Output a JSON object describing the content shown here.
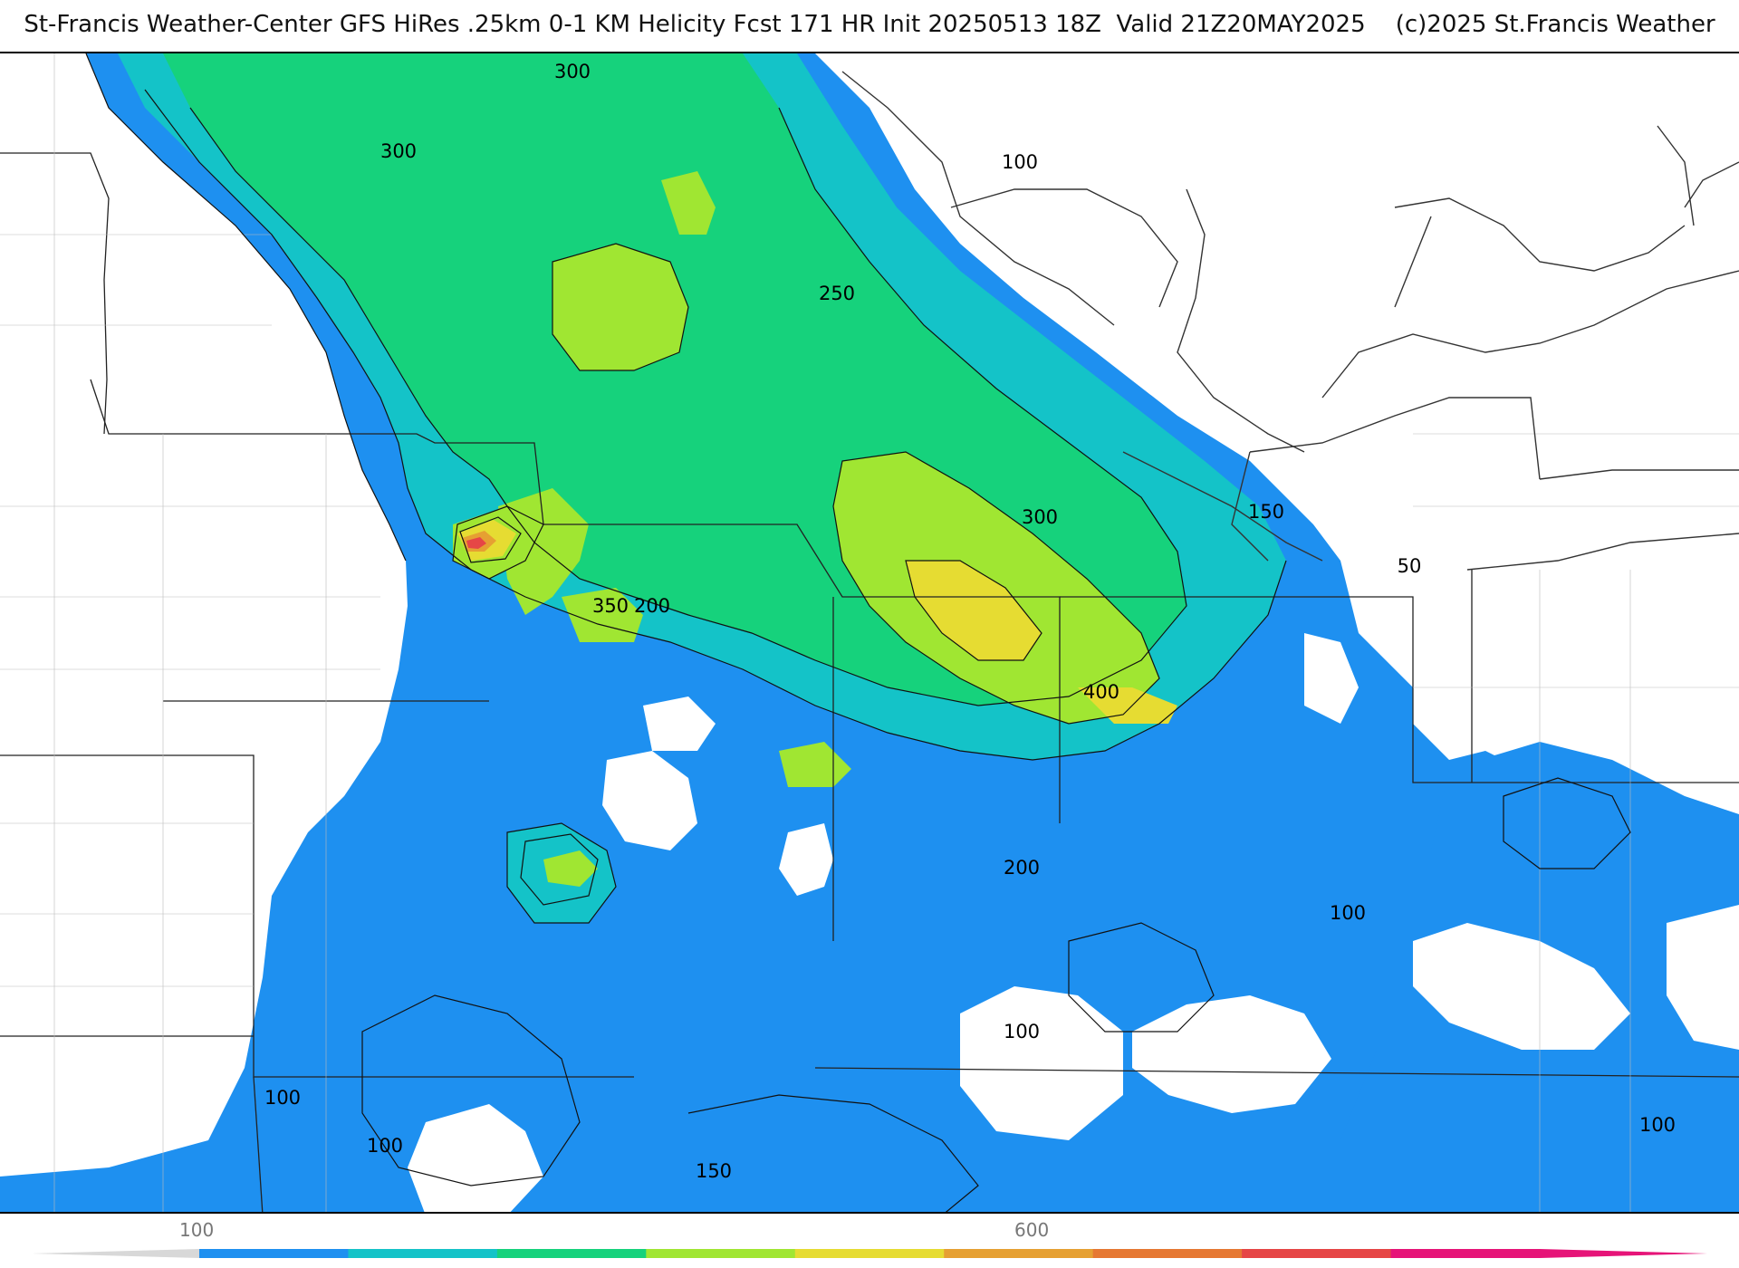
{
  "title": "St-Francis Weather-Center GFS HiRes .25km 0-1 KM Helicity Fcst 171 HR Init 20250513 18Z  Valid 21Z20MAY2025    (c)2025 St.Francis Weather",
  "map": {
    "field": "0-1 KM Helicity",
    "contour_labels": [
      {
        "id": "lbl-300-a",
        "text": "300"
      },
      {
        "id": "lbl-300-b",
        "text": "300"
      },
      {
        "id": "lbl-100-ne",
        "text": "100"
      },
      {
        "id": "lbl-250",
        "text": "250"
      },
      {
        "id": "lbl-300-c",
        "text": "300"
      },
      {
        "id": "lbl-150-e",
        "text": "150"
      },
      {
        "id": "lbl-50",
        "text": "50"
      },
      {
        "id": "lbl-350",
        "text": "350"
      },
      {
        "id": "lbl-200-a",
        "text": "200"
      },
      {
        "id": "lbl-400",
        "text": "400"
      },
      {
        "id": "lbl-200-b",
        "text": "200"
      },
      {
        "id": "lbl-100-c",
        "text": "100"
      },
      {
        "id": "lbl-100-d",
        "text": "100"
      },
      {
        "id": "lbl-100-sw",
        "text": "100"
      },
      {
        "id": "lbl-100-sw2",
        "text": "100"
      },
      {
        "id": "lbl-150-s",
        "text": "150"
      },
      {
        "id": "lbl-100-se",
        "text": "100"
      }
    ]
  },
  "colorbar": {
    "labels": [
      "100",
      "600"
    ],
    "colors": [
      "#1e90f0",
      "#14c3c8",
      "#16d27c",
      "#a0e632",
      "#e6dc32",
      "#e6a032",
      "#e67832",
      "#e64646",
      "#e61478"
    ]
  }
}
